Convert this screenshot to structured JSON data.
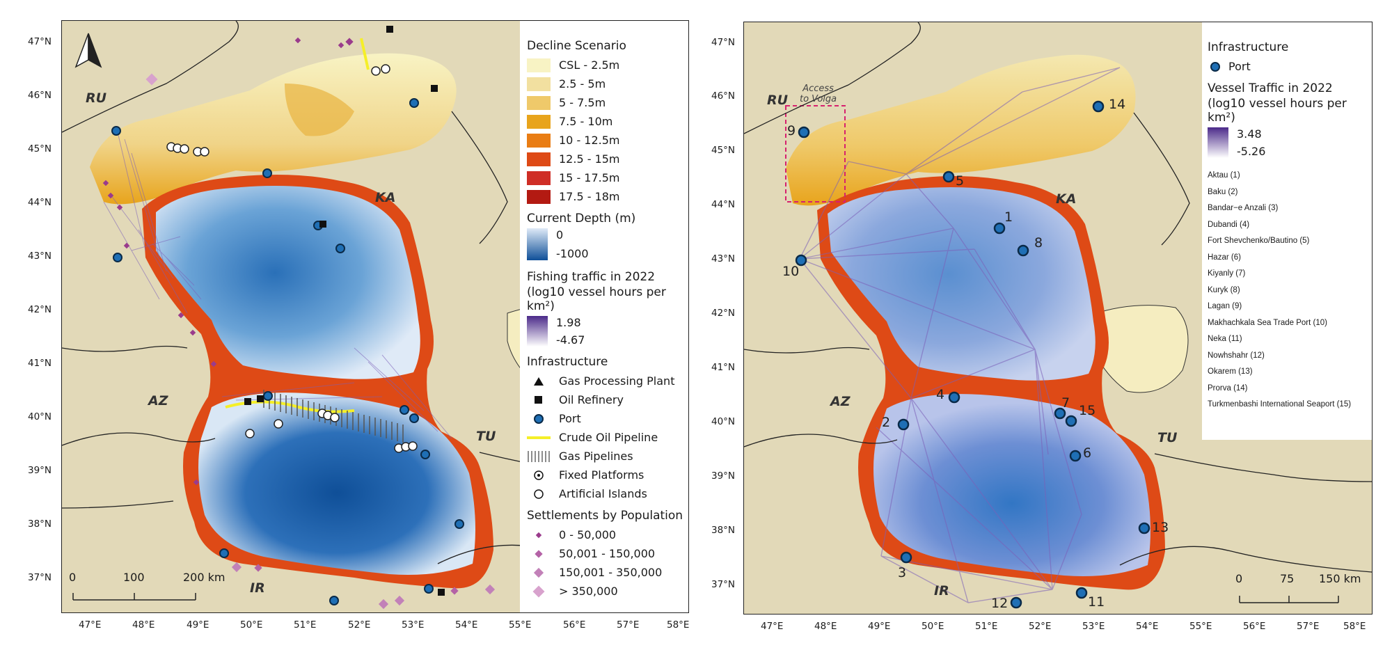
{
  "left_panel": {
    "lat_ticks": [
      "47°N",
      "46°N",
      "45°N",
      "44°N",
      "43°N",
      "42°N",
      "41°N",
      "40°N",
      "39°N",
      "38°N",
      "37°N"
    ],
    "lon_ticks": [
      "47°E",
      "48°E",
      "49°E",
      "50°E",
      "51°E",
      "52°E",
      "53°E",
      "54°E",
      "55°E",
      "56°E",
      "57°E",
      "58°E"
    ],
    "countries": [
      "RU",
      "KA",
      "AZ",
      "TU",
      "IR"
    ],
    "scalebar": [
      "0",
      "100",
      "200 km"
    ],
    "legend": {
      "decline_title": "Decline Scenario",
      "decline_items": [
        {
          "label": "CSL - 2.5m",
          "color": "#f8f3c4"
        },
        {
          "label": "2.5 - 5m",
          "color": "#f2e0a0"
        },
        {
          "label": "5 - 7.5m",
          "color": "#efc96a"
        },
        {
          "label": "7.5 - 10m",
          "color": "#e8a41c"
        },
        {
          "label": "10 - 12.5m",
          "color": "#e97d14"
        },
        {
          "label": "12.5 - 15m",
          "color": "#de4a16"
        },
        {
          "label": "15 - 17.5m",
          "color": "#cf2e26"
        },
        {
          "label": "17.5 - 18m",
          "color": "#b31a12"
        }
      ],
      "depth_title": "Current Depth (m)",
      "depth_max": "0",
      "depth_min": "-1000",
      "fishing_title_1": "Fishing traffic in 2022",
      "fishing_title_2": "(log10 vessel hours per km²)",
      "fishing_max": "1.98",
      "fishing_min": "-4.67",
      "infra_title": "Infrastructure",
      "infra_items": [
        "Gas Processing Plant",
        "Oil Refinery",
        "Port",
        "Crude Oil Pipeline",
        "Gas Pipelines",
        "Fixed Platforms",
        "Artificial Islands"
      ],
      "settle_title": "Settlements by Population",
      "settle_items": [
        "0 - 50,000",
        "50,001 - 150,000",
        "150,001 - 350,000",
        "> 350,000"
      ]
    }
  },
  "right_panel": {
    "lat_ticks": [
      "47°N",
      "46°N",
      "45°N",
      "44°N",
      "43°N",
      "42°N",
      "41°N",
      "40°N",
      "39°N",
      "38°N",
      "37°N"
    ],
    "lon_ticks": [
      "47°E",
      "48°E",
      "49°E",
      "50°E",
      "51°E",
      "52°E",
      "53°E",
      "54°E",
      "55°E",
      "56°E",
      "57°E",
      "58°E"
    ],
    "countries": [
      "RU",
      "KA",
      "AZ",
      "TU",
      "IR"
    ],
    "access_label_1": "Access",
    "access_label_2": "to Volga",
    "scalebar": [
      "0",
      "75",
      "150 km"
    ],
    "port_numbers": [
      "1",
      "2",
      "3",
      "4",
      "5",
      "6",
      "7",
      "8",
      "9",
      "10",
      "11",
      "12",
      "13",
      "14",
      "15"
    ],
    "legend": {
      "infra_title": "Infrastructure",
      "port_label": "Port",
      "traffic_title_1": "Vessel Traffic in 2022",
      "traffic_title_2": "(log10 vessel hours per km²)",
      "traffic_max": "3.48",
      "traffic_min": "-5.26",
      "ports": [
        "Aktau (1)",
        "Baku (2)",
        "Bandar−e Anzali (3)",
        "Dubandi (4)",
        "Fort Shevchenko/Bautino (5)",
        "Hazar (6)",
        "Kiyanly (7)",
        "Kuryk (8)",
        "Lagan (9)",
        "Makhachkala Sea Trade Port (10)",
        "Neka (11)",
        "Nowhshahr (12)",
        "Okarem (13)",
        "Prorva (14)",
        "Turkmenbashi International Seaport (15)"
      ]
    }
  },
  "colors": {
    "land": "#e2d9b8",
    "shallow_water": "#dde9f6",
    "deep_water": "#1a5da6",
    "traffic": "#7b5fb8",
    "port": "#1f6fb5",
    "pipeline_oil": "#f5ef28",
    "settlement": "#9a3b8c"
  }
}
